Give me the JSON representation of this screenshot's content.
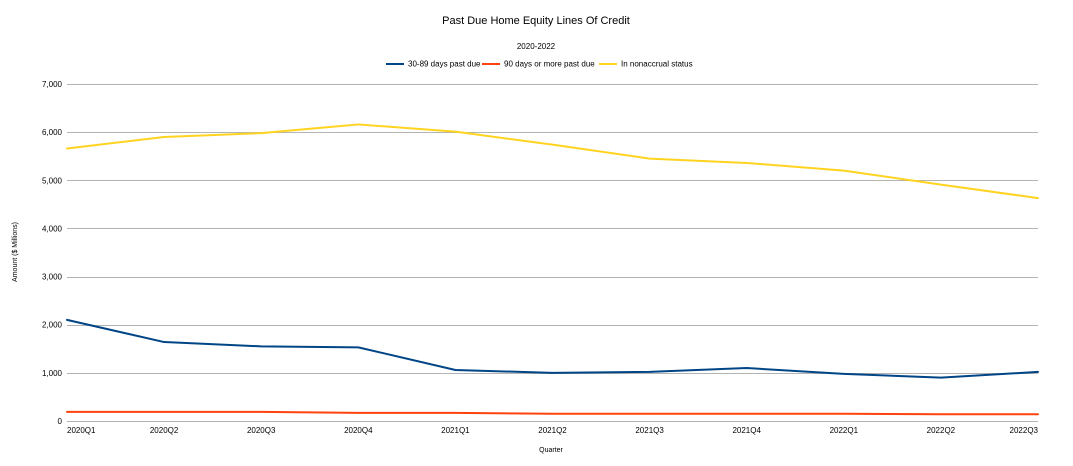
{
  "chart_data": {
    "type": "line",
    "title": "Past Due Home Equity Lines Of Credit",
    "subtitle": "2020-2022",
    "xlabel": "Quarter",
    "ylabel": "Amount ($ Millions)",
    "ylim": [
      0,
      7000
    ],
    "y_ticks": [
      0,
      1000,
      2000,
      3000,
      4000,
      5000,
      6000,
      7000
    ],
    "y_tick_labels": [
      "0",
      "1,000",
      "2,000",
      "3,000",
      "4,000",
      "5,000",
      "6,000",
      "7,000"
    ],
    "grid": true,
    "legend_position": "top-center",
    "categories": [
      "2020Q1",
      "2020Q2",
      "2020Q3",
      "2020Q4",
      "2021Q1",
      "2021Q2",
      "2021Q3",
      "2021Q4",
      "2022Q1",
      "2022Q2",
      "2022Q3"
    ],
    "series": [
      {
        "name": "30-89 days past due",
        "color": "#004586",
        "values": [
          2100,
          1640,
          1550,
          1530,
          1060,
          1000,
          1020,
          1100,
          980,
          900,
          1020
        ]
      },
      {
        "name": "90 days or more past due",
        "color": "#ff420e",
        "values": [
          190,
          190,
          190,
          170,
          170,
          150,
          150,
          150,
          150,
          140,
          140
        ]
      },
      {
        "name": "In nonaccrual status",
        "color": "#ffd320",
        "values": [
          5660,
          5900,
          5980,
          6160,
          6010,
          5740,
          5450,
          5360,
          5200,
          4910,
          4630
        ]
      }
    ]
  }
}
